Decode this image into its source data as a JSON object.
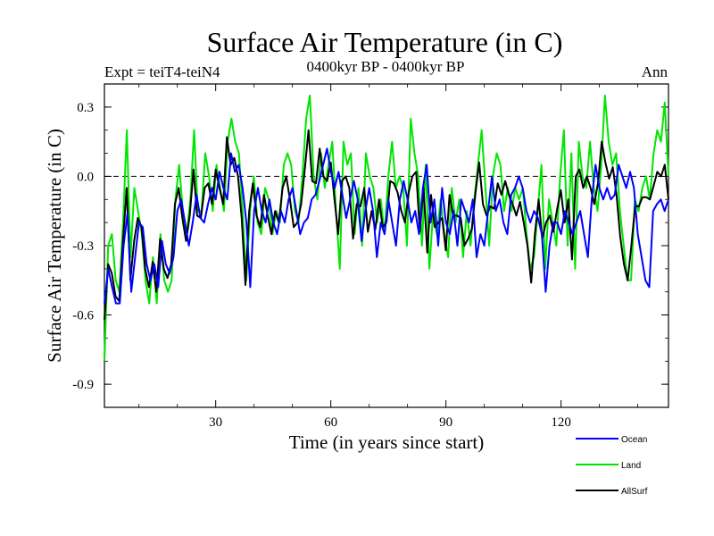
{
  "chart_data": {
    "type": "line",
    "title": "Surface Air Temperature (in C)",
    "left_label": "Expt = teiT4-teiN4",
    "center_label": "0400kyr BP - 0400kyr BP",
    "right_label": "Ann",
    "xlabel": "Time (in years since start)",
    "ylabel": "Surface Air Temperature (in C)",
    "xlim": [
      1,
      148
    ],
    "ylim": [
      -1.0,
      0.4
    ],
    "xticks": [
      30,
      60,
      90,
      120
    ],
    "xtick_labels": [
      "30",
      "60",
      "90",
      "120"
    ],
    "yticks": [
      0.3,
      0.0,
      -0.3,
      -0.6,
      -0.9
    ],
    "ytick_labels": [
      "0.3",
      "0.0",
      "-0.3",
      "-0.6",
      "-0.9"
    ],
    "zero_line": "dashed",
    "legend_position": "bottom-right outside",
    "series": [
      {
        "name": "Ocean",
        "color": "#0000ff",
        "values": [
          -0.55,
          -0.4,
          -0.48,
          -0.55,
          -0.55,
          -0.3,
          -0.16,
          -0.5,
          -0.35,
          -0.2,
          -0.22,
          -0.38,
          -0.45,
          -0.38,
          -0.48,
          -0.28,
          -0.38,
          -0.42,
          -0.35,
          -0.15,
          -0.1,
          -0.2,
          -0.3,
          -0.2,
          -0.08,
          -0.18,
          -0.2,
          -0.12,
          -0.05,
          -0.1,
          0.02,
          -0.05,
          -0.1,
          0.1,
          0.02,
          0.05,
          -0.05,
          -0.2,
          -0.48,
          -0.15,
          -0.05,
          -0.15,
          -0.2,
          -0.1,
          -0.2,
          -0.25,
          -0.15,
          -0.2,
          -0.1,
          -0.05,
          -0.15,
          -0.25,
          -0.2,
          -0.18,
          -0.1,
          -0.08,
          -0.02,
          0.05,
          0.12,
          0.02,
          -0.05,
          0.02,
          -0.08,
          -0.18,
          -0.1,
          -0.02,
          -0.1,
          -0.28,
          -0.15,
          -0.05,
          -0.15,
          -0.35,
          -0.2,
          -0.25,
          -0.1,
          -0.2,
          -0.3,
          -0.1,
          -0.02,
          -0.1,
          -0.2,
          -0.15,
          -0.25,
          -0.05,
          0.05,
          -0.2,
          -0.1,
          -0.3,
          -0.05,
          -0.2,
          -0.25,
          -0.15,
          -0.3,
          -0.1,
          -0.15,
          -0.2,
          -0.1,
          -0.35,
          -0.25,
          -0.3,
          -0.15,
          0.0,
          -0.15,
          -0.1,
          -0.2,
          -0.25,
          -0.08,
          -0.05,
          0.0,
          -0.05,
          -0.15,
          -0.2,
          -0.15,
          -0.18,
          -0.25,
          -0.5,
          -0.3,
          -0.2,
          -0.2,
          -0.25,
          -0.15,
          -0.2,
          -0.25,
          -0.2,
          -0.15,
          -0.25,
          -0.35,
          -0.1,
          0.05,
          -0.05,
          -0.1,
          -0.05,
          -0.1,
          -0.08,
          0.05,
          0.0,
          -0.05,
          0.02,
          -0.05,
          -0.25,
          -0.35,
          -0.45,
          -0.48,
          -0.15,
          -0.12,
          -0.1,
          -0.15,
          -0.1
        ]
      },
      {
        "name": "Land",
        "color": "#00e600",
        "values": [
          -0.8,
          -0.3,
          -0.25,
          -0.45,
          -0.5,
          -0.2,
          0.2,
          -0.35,
          -0.05,
          -0.15,
          -0.25,
          -0.45,
          -0.55,
          -0.35,
          -0.55,
          -0.25,
          -0.45,
          -0.5,
          -0.45,
          -0.1,
          0.05,
          -0.15,
          -0.25,
          -0.1,
          0.2,
          -0.15,
          -0.15,
          0.1,
          0.0,
          -0.15,
          0.05,
          -0.05,
          -0.15,
          0.15,
          0.25,
          0.15,
          0.1,
          -0.15,
          -0.45,
          -0.15,
          0.0,
          -0.2,
          -0.25,
          -0.05,
          -0.1,
          -0.25,
          -0.15,
          -0.2,
          0.05,
          0.1,
          0.05,
          -0.15,
          -0.2,
          0.0,
          0.25,
          0.35,
          0.0,
          -0.1,
          0.1,
          -0.05,
          0.05,
          0.15,
          -0.15,
          -0.4,
          0.15,
          0.05,
          0.1,
          -0.25,
          -0.05,
          -0.3,
          0.1,
          0.0,
          -0.05,
          -0.2,
          -0.1,
          -0.25,
          0.0,
          0.15,
          -0.05,
          0.0,
          -0.05,
          -0.3,
          0.25,
          0.1,
          0.0,
          -0.3,
          0.05,
          -0.4,
          -0.15,
          -0.25,
          -0.1,
          -0.25,
          -0.35,
          -0.05,
          -0.2,
          -0.1,
          -0.35,
          -0.15,
          -0.3,
          -0.1,
          0.05,
          0.2,
          -0.05,
          -0.3,
          0.0,
          0.1,
          0.05,
          -0.15,
          -0.05,
          -0.15,
          -0.05,
          -0.1,
          -0.05,
          -0.25,
          -0.4,
          -0.35,
          -0.15,
          0.05,
          -0.4,
          -0.1,
          -0.2,
          -0.3,
          0.0,
          0.2,
          -0.3,
          0.1,
          -0.4,
          0.15,
          0.0,
          -0.05,
          0.15,
          -0.05,
          -0.15,
          0.05,
          0.35,
          0.15,
          0.05,
          0.1,
          -0.15,
          -0.3,
          -0.45,
          -0.45,
          -0.1,
          -0.15,
          -0.05,
          0.0,
          -0.1,
          0.1,
          0.2,
          0.15,
          0.32,
          0.0
        ]
      },
      {
        "name": "AllSurf",
        "color": "#000000",
        "values": [
          -0.62,
          -0.38,
          -0.42,
          -0.52,
          -0.54,
          -0.28,
          -0.05,
          -0.45,
          -0.28,
          -0.18,
          -0.22,
          -0.4,
          -0.48,
          -0.37,
          -0.5,
          -0.27,
          -0.4,
          -0.44,
          -0.38,
          -0.12,
          -0.05,
          -0.18,
          -0.28,
          -0.17,
          0.03,
          -0.17,
          -0.18,
          -0.05,
          -0.03,
          -0.12,
          0.03,
          -0.05,
          -0.12,
          0.17,
          0.05,
          0.08,
          0.0,
          -0.18,
          -0.47,
          -0.15,
          -0.03,
          -0.17,
          -0.22,
          -0.08,
          -0.17,
          -0.25,
          -0.15,
          -0.2,
          -0.05,
          0.0,
          -0.1,
          -0.22,
          -0.2,
          -0.12,
          0.03,
          0.2,
          -0.02,
          -0.03,
          0.12,
          0.0,
          -0.02,
          0.06,
          -0.1,
          -0.25,
          -0.02,
          0.0,
          -0.05,
          -0.27,
          -0.12,
          -0.13,
          -0.05,
          -0.24,
          -0.15,
          -0.23,
          -0.1,
          -0.22,
          -0.2,
          -0.02,
          -0.03,
          -0.07,
          -0.15,
          -0.2,
          -0.07,
          -0.0,
          0.02,
          -0.24,
          -0.05,
          -0.33,
          -0.08,
          -0.22,
          -0.2,
          -0.18,
          -0.32,
          -0.08,
          -0.17,
          -0.17,
          -0.18,
          -0.3,
          -0.27,
          -0.23,
          -0.07,
          0.06,
          -0.12,
          -0.17,
          -0.13,
          -0.14,
          -0.03,
          -0.08,
          -0.02,
          -0.08,
          -0.12,
          -0.17,
          -0.11,
          -0.2,
          -0.3,
          -0.46,
          -0.25,
          -0.1,
          -0.27,
          -0.2,
          -0.17,
          -0.24,
          -0.14,
          -0.06,
          -0.2,
          -0.1,
          -0.36,
          0.0,
          0.03,
          -0.05,
          0.0,
          -0.05,
          -0.12,
          -0.03,
          0.15,
          0.06,
          -0.01,
          0.04,
          -0.08,
          -0.26,
          -0.38,
          -0.45,
          -0.3,
          -0.13,
          -0.13,
          -0.09,
          -0.09,
          -0.1,
          -0.04,
          0.02,
          0.0,
          0.05,
          -0.1
        ]
      }
    ]
  }
}
